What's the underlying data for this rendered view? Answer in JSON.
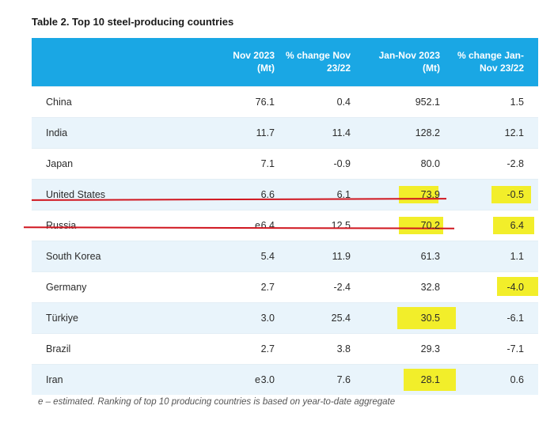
{
  "title": "Table 2. Top 10 steel-producing countries",
  "headers": {
    "col1": [
      "Nov 2023",
      "(Mt)"
    ],
    "col2": [
      "% change Nov",
      "23/22"
    ],
    "col3": [
      "Jan-Nov 2023",
      "(Mt)"
    ],
    "col4": [
      "% change Jan-",
      "Nov 23/22"
    ]
  },
  "rows": [
    {
      "country": "China",
      "nov2023": "76.1",
      "flag": "",
      "chg_nov": "0.4",
      "jan_nov": "952.1",
      "chg_jan_nov": "1.5"
    },
    {
      "country": "India",
      "nov2023": "11.7",
      "flag": "",
      "chg_nov": "11.4",
      "jan_nov": "128.2",
      "chg_jan_nov": "12.1"
    },
    {
      "country": "Japan",
      "nov2023": "7.1",
      "flag": "",
      "chg_nov": "-0.9",
      "jan_nov": "80.0",
      "chg_jan_nov": "-2.8"
    },
    {
      "country": "United States",
      "nov2023": "6.6",
      "flag": "",
      "chg_nov": "6.1",
      "jan_nov": "73.9",
      "chg_jan_nov": "-0.5"
    },
    {
      "country": "Russia",
      "nov2023": "6.4",
      "flag": "e",
      "chg_nov": "12.5",
      "jan_nov": "70.2",
      "chg_jan_nov": "6.4"
    },
    {
      "country": "South Korea",
      "nov2023": "5.4",
      "flag": "",
      "chg_nov": "11.9",
      "jan_nov": "61.3",
      "chg_jan_nov": "1.1"
    },
    {
      "country": "Germany",
      "nov2023": "2.7",
      "flag": "",
      "chg_nov": "-2.4",
      "jan_nov": "32.8",
      "chg_jan_nov": "-4.0"
    },
    {
      "country": "Türkiye",
      "nov2023": "3.0",
      "flag": "",
      "chg_nov": "25.4",
      "jan_nov": "30.5",
      "chg_jan_nov": "-6.1"
    },
    {
      "country": "Brazil",
      "nov2023": "2.7",
      "flag": "",
      "chg_nov": "3.8",
      "jan_nov": "29.3",
      "chg_jan_nov": "-7.1"
    },
    {
      "country": "Iran",
      "nov2023": "3.0",
      "flag": "e",
      "chg_nov": "7.6",
      "jan_nov": "28.1",
      "chg_jan_nov": "0.6"
    }
  ],
  "footnote": "e – estimated. Ranking of top 10 producing countries is based on year-to-date aggregate",
  "colors": {
    "header_bg": "#1aa7e4",
    "alt_row_bg": "#e9f4fb",
    "highlight": "#f2ee2a",
    "underline": "#d0161f"
  }
}
